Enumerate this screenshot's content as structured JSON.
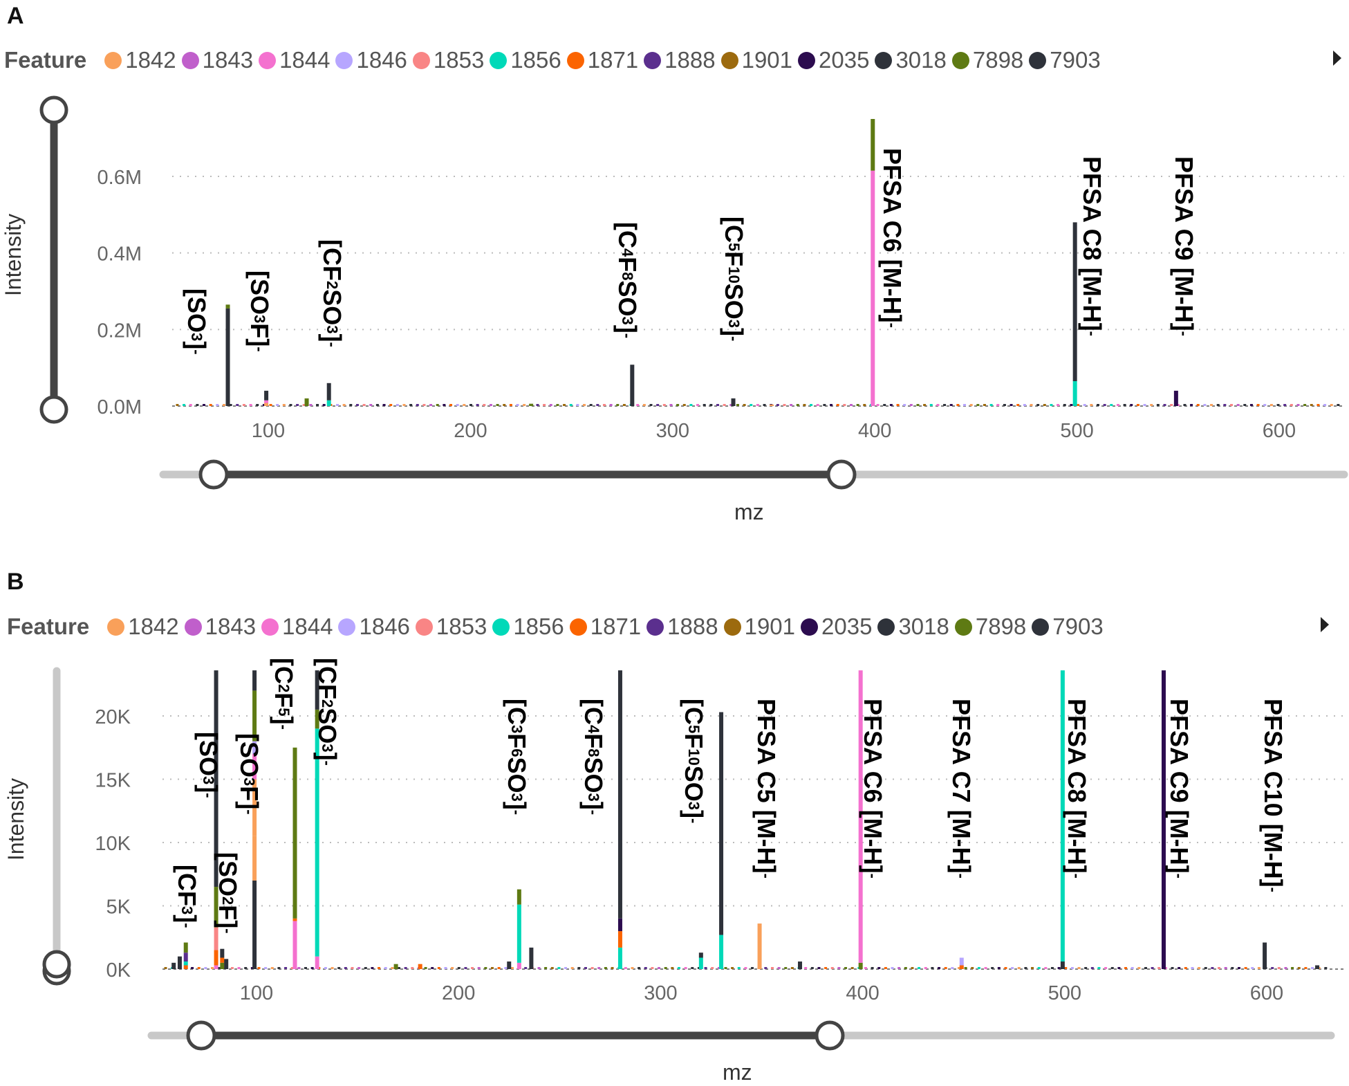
{
  "legend": {
    "title": "Feature",
    "items": [
      {
        "id": "1842",
        "color": "#f9a05a"
      },
      {
        "id": "1843",
        "color": "#c05fcb"
      },
      {
        "id": "1844",
        "color": "#f471cf"
      },
      {
        "id": "1846",
        "color": "#b7a6ff"
      },
      {
        "id": "1853",
        "color": "#f98585"
      },
      {
        "id": "1856",
        "color": "#00d9b8"
      },
      {
        "id": "1871",
        "color": "#fb6400"
      },
      {
        "id": "1888",
        "color": "#5b2f8e"
      },
      {
        "id": "1901",
        "color": "#9c6a0e"
      },
      {
        "id": "2035",
        "color": "#2c0c4f"
      },
      {
        "id": "3018",
        "color": "#2e323a"
      },
      {
        "id": "7898",
        "color": "#5e7a13"
      },
      {
        "id": "7903",
        "color": "#2e323a"
      }
    ]
  },
  "chart_data": [
    {
      "panel": "A",
      "type": "bar",
      "stacked": true,
      "xlabel": "mz",
      "ylabel": "Intensity",
      "xlim": [
        50,
        630
      ],
      "ylim": [
        0,
        0.78
      ],
      "x_ticks": [
        "100",
        "200",
        "300",
        "400",
        "500",
        "600"
      ],
      "x_tick_values": [
        100,
        200,
        300,
        400,
        500,
        600
      ],
      "y_ticks": [
        "0.0M",
        "0.2M",
        "0.4M",
        "0.6M"
      ],
      "y_tick_values": [
        0,
        0.2,
        0.4,
        0.6
      ],
      "y_unit": "M",
      "grid": true,
      "legend_position": "top",
      "bars": [
        {
          "mz": 80,
          "stack": [
            [
              "3018",
              0.255
            ],
            [
              "7898",
              0.01
            ]
          ]
        },
        {
          "mz": 99,
          "stack": [
            [
              "1842",
              0.008
            ],
            [
              "1844",
              0.007
            ],
            [
              "3018",
              0.025
            ]
          ]
        },
        {
          "mz": 119,
          "stack": [
            [
              "7898",
              0.02
            ]
          ]
        },
        {
          "mz": 130,
          "stack": [
            [
              "1856",
              0.015
            ],
            [
              "3018",
              0.045
            ]
          ]
        },
        {
          "mz": 230,
          "stack": [
            [
              "7898",
              0.006
            ]
          ]
        },
        {
          "mz": 280,
          "stack": [
            [
              "3018",
              0.108
            ]
          ]
        },
        {
          "mz": 330,
          "stack": [
            [
              "3018",
              0.02
            ]
          ]
        },
        {
          "mz": 349,
          "stack": [
            [
              "1842",
              0.004
            ]
          ]
        },
        {
          "mz": 399,
          "stack": [
            [
              "1844",
              0.615
            ],
            [
              "7898",
              0.135
            ]
          ]
        },
        {
          "mz": 499,
          "stack": [
            [
              "1856",
              0.065
            ],
            [
              "3018",
              0.415
            ]
          ]
        },
        {
          "mz": 549,
          "stack": [
            [
              "2035",
              0.04
            ]
          ]
        }
      ],
      "annotations": [
        {
          "mz": 80,
          "parts": [
            [
              "t",
              "[SO"
            ],
            [
              "sub",
              "3"
            ],
            [
              "t",
              "]"
            ],
            [
              "sup",
              "-"
            ]
          ]
        },
        {
          "mz": 99,
          "parts": [
            [
              "t",
              "[SO"
            ],
            [
              "sub",
              "3"
            ],
            [
              "t",
              "F]"
            ],
            [
              "sup",
              "-"
            ]
          ]
        },
        {
          "mz": 130,
          "parts": [
            [
              "t",
              "[CF"
            ],
            [
              "sub",
              "2"
            ],
            [
              "t",
              "SO"
            ],
            [
              "sub",
              "3"
            ],
            [
              "t",
              "]"
            ],
            [
              "sup",
              "-"
            ]
          ]
        },
        {
          "mz": 280,
          "parts": [
            [
              "t",
              "[C"
            ],
            [
              "sub",
              "4"
            ],
            [
              "t",
              "F"
            ],
            [
              "sub",
              "8"
            ],
            [
              "t",
              "SO"
            ],
            [
              "sub",
              "3"
            ],
            [
              "t",
              "]"
            ],
            [
              "sup",
              "-"
            ]
          ]
        },
        {
          "mz": 330,
          "parts": [
            [
              "t",
              "[C"
            ],
            [
              "sub",
              "5"
            ],
            [
              "t",
              "F"
            ],
            [
              "sub",
              "10"
            ],
            [
              "t",
              "SO"
            ],
            [
              "sub",
              "3"
            ],
            [
              "t",
              "]"
            ],
            [
              "sup",
              "-"
            ]
          ]
        },
        {
          "mz": 399,
          "parts": [
            [
              "t",
              "PFSA C6 [M-H]"
            ],
            [
              "sup",
              "-"
            ]
          ]
        },
        {
          "mz": 499,
          "parts": [
            [
              "t",
              "PFSA C8 [M-H]"
            ],
            [
              "sup",
              "-"
            ]
          ]
        },
        {
          "mz": 549,
          "parts": [
            [
              "t",
              "PFSA C9 [M-H]"
            ],
            [
              "sup",
              "-"
            ]
          ]
        }
      ],
      "x_range_slider": [
        75,
        386
      ],
      "y_range_slider": [
        0,
        0.78
      ]
    },
    {
      "panel": "B",
      "type": "bar",
      "stacked": true,
      "xlabel": "mz",
      "ylabel": "Intensity",
      "xlim": [
        50,
        630
      ],
      "ylim": [
        0,
        23.6
      ],
      "x_ticks": [
        "100",
        "200",
        "300",
        "400",
        "500",
        "600"
      ],
      "x_tick_values": [
        100,
        200,
        300,
        400,
        500,
        600
      ],
      "y_ticks": [
        "0K",
        "5K",
        "10K",
        "15K",
        "20K"
      ],
      "y_tick_values": [
        0,
        5,
        10,
        15,
        20
      ],
      "y_unit": "K",
      "grid": true,
      "legend_position": "top",
      "bars": [
        {
          "mz": 59,
          "stack": [
            [
              "3018",
              0.5
            ]
          ]
        },
        {
          "mz": 62,
          "stack": [
            [
              "3018",
              1.0
            ]
          ]
        },
        {
          "mz": 65,
          "stack": [
            [
              "1871",
              0.3
            ],
            [
              "1856",
              0.3
            ],
            [
              "1888",
              0.7
            ],
            [
              "7898",
              0.8
            ]
          ]
        },
        {
          "mz": 80,
          "stack": [
            [
              "1844",
              0.3
            ],
            [
              "1871",
              1.2
            ],
            [
              "1853",
              1.8
            ],
            [
              "7898",
              3.2
            ],
            [
              "3018",
              3.5
            ],
            [
              "3018",
              13.6
            ]
          ]
        },
        {
          "mz": 83,
          "stack": [
            [
              "7898",
              0.5
            ],
            [
              "1871",
              0.4
            ],
            [
              "3018",
              0.7
            ]
          ]
        },
        {
          "mz": 85,
          "stack": [
            [
              "3018",
              0.8
            ]
          ]
        },
        {
          "mz": 99,
          "stack": [
            [
              "3018",
              7.0
            ],
            [
              "1842",
              3.5
            ],
            [
              "1842",
              4.5
            ],
            [
              "1844",
              2.0
            ],
            [
              "1846",
              1.0
            ],
            [
              "7898",
              4.0
            ],
            [
              "3018",
              1.6
            ]
          ]
        },
        {
          "mz": 119,
          "stack": [
            [
              "1844",
              3.8
            ],
            [
              "1871",
              0.2
            ],
            [
              "7898",
              13.5
            ]
          ]
        },
        {
          "mz": 130,
          "stack": [
            [
              "1844",
              1.0
            ],
            [
              "1856",
              18.0
            ],
            [
              "7898",
              1.5
            ],
            [
              "3018",
              3.1
            ]
          ]
        },
        {
          "mz": 169,
          "stack": [
            [
              "7898",
              0.4
            ]
          ]
        },
        {
          "mz": 181,
          "stack": [
            [
              "1871",
              0.4
            ]
          ]
        },
        {
          "mz": 225,
          "stack": [
            [
              "3018",
              0.6
            ]
          ]
        },
        {
          "mz": 230,
          "stack": [
            [
              "1844",
              0.5
            ],
            [
              "1856",
              4.6
            ],
            [
              "7898",
              1.2
            ]
          ]
        },
        {
          "mz": 236,
          "stack": [
            [
              "3018",
              1.7
            ]
          ]
        },
        {
          "mz": 280,
          "stack": [
            [
              "1856",
              1.7
            ],
            [
              "1871",
              1.3
            ],
            [
              "2035",
              1.0
            ],
            [
              "3018",
              19.6
            ]
          ]
        },
        {
          "mz": 320,
          "stack": [
            [
              "1856",
              0.9
            ],
            [
              "3018",
              0.4
            ]
          ]
        },
        {
          "mz": 330,
          "stack": [
            [
              "1856",
              2.7
            ],
            [
              "3018",
              17.6
            ]
          ]
        },
        {
          "mz": 349,
          "stack": [
            [
              "1842",
              3.6
            ]
          ]
        },
        {
          "mz": 369,
          "stack": [
            [
              "3018",
              0.6
            ]
          ]
        },
        {
          "mz": 399,
          "stack": [
            [
              "7898",
              0.5
            ],
            [
              "1844",
              23.1
            ]
          ]
        },
        {
          "mz": 449,
          "stack": [
            [
              "1871",
              0.3
            ],
            [
              "1846",
              0.6
            ]
          ]
        },
        {
          "mz": 499,
          "stack": [
            [
              "3018",
              0.6
            ],
            [
              "1856",
              23.0
            ]
          ]
        },
        {
          "mz": 549,
          "stack": [
            [
              "2035",
              23.6
            ]
          ]
        },
        {
          "mz": 599,
          "stack": [
            [
              "3018",
              2.1
            ]
          ]
        },
        {
          "mz": 625,
          "stack": [
            [
              "3018",
              0.3
            ]
          ]
        }
      ],
      "annotations": [
        {
          "mz": 65,
          "parts": [
            [
              "t",
              "[CF"
            ],
            [
              "sub",
              "3"
            ],
            [
              "t",
              "]"
            ],
            [
              "sup",
              "-"
            ]
          ]
        },
        {
          "mz": 80,
          "parts": [
            [
              "t",
              "[SO"
            ],
            [
              "sub",
              "3"
            ],
            [
              "t",
              "]"
            ],
            [
              "sup",
              "-"
            ]
          ]
        },
        {
          "mz": 83,
          "parts": [
            [
              "t",
              "[SO"
            ],
            [
              "sub",
              "2"
            ],
            [
              "t",
              "F]"
            ],
            [
              "sup",
              "-"
            ]
          ]
        },
        {
          "mz": 99,
          "parts": [
            [
              "t",
              "[SO"
            ],
            [
              "sub",
              "3"
            ],
            [
              "t",
              "F]"
            ],
            [
              "sup",
              "-"
            ]
          ]
        },
        {
          "mz": 119,
          "parts": [
            [
              "t",
              "[C"
            ],
            [
              "sub",
              "2"
            ],
            [
              "t",
              "F"
            ],
            [
              "sub",
              "5"
            ],
            [
              "t",
              "]"
            ],
            [
              "sup",
              "-"
            ]
          ]
        },
        {
          "mz": 130,
          "parts": [
            [
              "t",
              "[CF"
            ],
            [
              "sub",
              "2"
            ],
            [
              "t",
              "SO"
            ],
            [
              "sub",
              "3"
            ],
            [
              "t",
              "]"
            ],
            [
              "sup",
              "-"
            ]
          ]
        },
        {
          "mz": 230,
          "parts": [
            [
              "t",
              "[C"
            ],
            [
              "sub",
              "3"
            ],
            [
              "t",
              "F"
            ],
            [
              "sub",
              "6"
            ],
            [
              "t",
              "SO"
            ],
            [
              "sub",
              "3"
            ],
            [
              "t",
              "]"
            ],
            [
              "sup",
              "-"
            ]
          ]
        },
        {
          "mz": 280,
          "parts": [
            [
              "t",
              "[C"
            ],
            [
              "sub",
              "4"
            ],
            [
              "t",
              "F"
            ],
            [
              "sub",
              "8"
            ],
            [
              "t",
              "SO"
            ],
            [
              "sub",
              "3"
            ],
            [
              "t",
              "]"
            ],
            [
              "sup",
              "-"
            ]
          ]
        },
        {
          "mz": 330,
          "parts": [
            [
              "t",
              "[C"
            ],
            [
              "sub",
              "5"
            ],
            [
              "t",
              "F"
            ],
            [
              "sub",
              "10"
            ],
            [
              "t",
              "SO"
            ],
            [
              "sub",
              "3"
            ],
            [
              "t",
              "]"
            ],
            [
              "sup",
              "-"
            ]
          ]
        },
        {
          "mz": 349,
          "parts": [
            [
              "t",
              "PFSA C5 [M-H]"
            ],
            [
              "sup",
              "-"
            ]
          ]
        },
        {
          "mz": 399,
          "parts": [
            [
              "t",
              "PFSA C6 [M-H]"
            ],
            [
              "sup",
              "-"
            ]
          ]
        },
        {
          "mz": 449,
          "parts": [
            [
              "t",
              "PFSA C7 [M-H]"
            ],
            [
              "sup",
              "-"
            ]
          ]
        },
        {
          "mz": 499,
          "parts": [
            [
              "t",
              "PFSA C8 [M-H]"
            ],
            [
              "sup",
              "-"
            ]
          ]
        },
        {
          "mz": 549,
          "parts": [
            [
              "t",
              "PFSA C9 [M-H]"
            ],
            [
              "sup",
              "-"
            ]
          ]
        },
        {
          "mz": 599,
          "parts": [
            [
              "t",
              "PFSA C10 [M-H]"
            ],
            [
              "sup",
              "-"
            ]
          ]
        }
      ],
      "x_range_slider": [
        75,
        386
      ],
      "y_range_slider": [
        0,
        0
      ]
    }
  ]
}
